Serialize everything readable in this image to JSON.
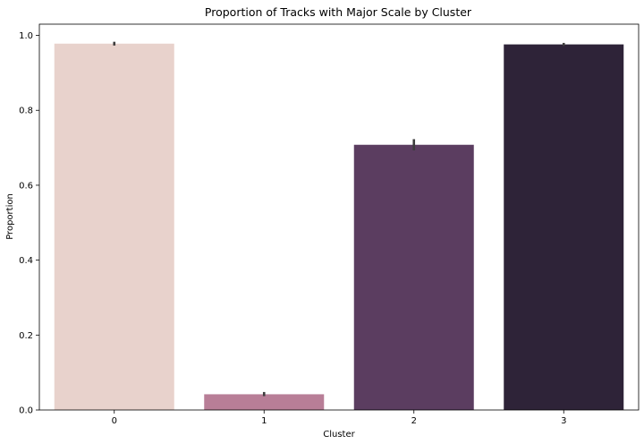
{
  "chart_data": {
    "type": "bar",
    "title": "Proportion of Tracks with Major Scale by Cluster",
    "xlabel": "Cluster",
    "ylabel": "Proportion",
    "categories": [
      "0",
      "1",
      "2",
      "3"
    ],
    "values": [
      0.978,
      0.042,
      0.708,
      0.976
    ],
    "error_bars": [
      [
        0.973,
        0.983
      ],
      [
        0.037,
        0.048
      ],
      [
        0.693,
        0.723
      ],
      [
        0.972,
        0.98
      ]
    ],
    "colors": [
      "#e8d2cc",
      "#b87e97",
      "#5b3d60",
      "#2e2338"
    ],
    "ylim": [
      0,
      1.03
    ],
    "yticks": [
      "0.0",
      "0.2",
      "0.4",
      "0.6",
      "0.8",
      "1.0"
    ],
    "ytick_values": [
      0,
      0.2,
      0.4,
      0.6,
      0.8,
      1.0
    ],
    "grid": false,
    "legend": "none"
  }
}
